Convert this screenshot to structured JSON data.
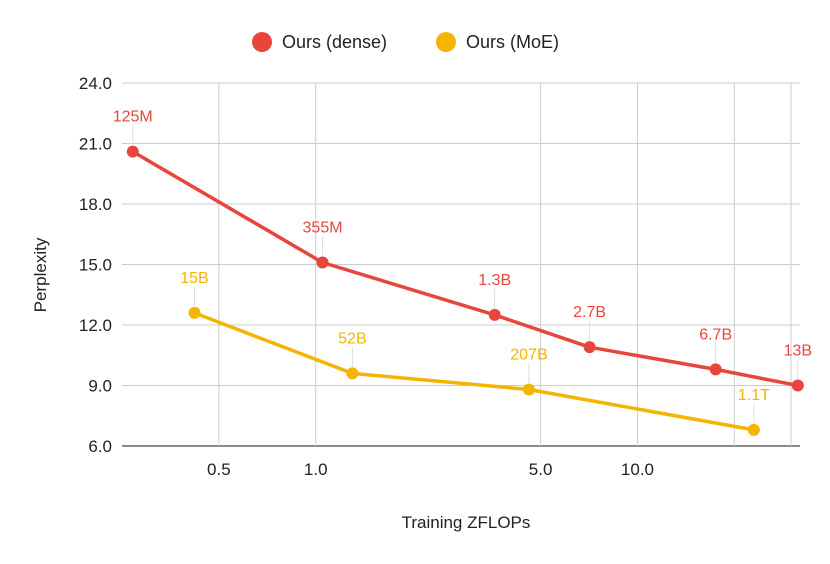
{
  "chart_data": {
    "type": "line",
    "title": "",
    "xlabel": "Training ZFLOPs",
    "ylabel": "Perplexity",
    "x_scale": "log",
    "x_ticks": [
      {
        "value": 0.5,
        "label": "0.5"
      },
      {
        "value": 1.0,
        "label": "1.0"
      },
      {
        "value": 5.0,
        "label": "5.0"
      },
      {
        "value": 10.0,
        "label": "10.0"
      }
    ],
    "x_minor_gridlines": [
      20,
      30
    ],
    "xlim": [
      0.25,
      32
    ],
    "ylim": [
      6,
      24
    ],
    "y_ticks": [
      {
        "value": 6,
        "label": "6.0"
      },
      {
        "value": 9,
        "label": "9.0"
      },
      {
        "value": 12,
        "label": "12.0"
      },
      {
        "value": 15,
        "label": "15.0"
      },
      {
        "value": 18,
        "label": "18.0"
      },
      {
        "value": 21,
        "label": "21.0"
      },
      {
        "value": 24,
        "label": "24.0"
      }
    ],
    "grid": true,
    "legend_position": "top-center",
    "series": [
      {
        "name": "Ours (dense)",
        "color": "#e8453c",
        "points": [
          {
            "x": 0.27,
            "y": 20.6,
            "label": "125M"
          },
          {
            "x": 1.05,
            "y": 15.1,
            "label": "355M"
          },
          {
            "x": 3.6,
            "y": 12.5,
            "label": "1.3B"
          },
          {
            "x": 7.1,
            "y": 10.9,
            "label": "2.7B"
          },
          {
            "x": 17.5,
            "y": 9.8,
            "label": "6.7B"
          },
          {
            "x": 31.5,
            "y": 9.0,
            "label": "13B"
          }
        ]
      },
      {
        "name": "Ours (MoE)",
        "color": "#f4b400",
        "points": [
          {
            "x": 0.42,
            "y": 12.6,
            "label": "15B"
          },
          {
            "x": 1.3,
            "y": 9.6,
            "label": "52B"
          },
          {
            "x": 4.6,
            "y": 8.8,
            "label": "207B"
          },
          {
            "x": 23.0,
            "y": 6.8,
            "label": "1.1T"
          }
        ]
      }
    ]
  }
}
